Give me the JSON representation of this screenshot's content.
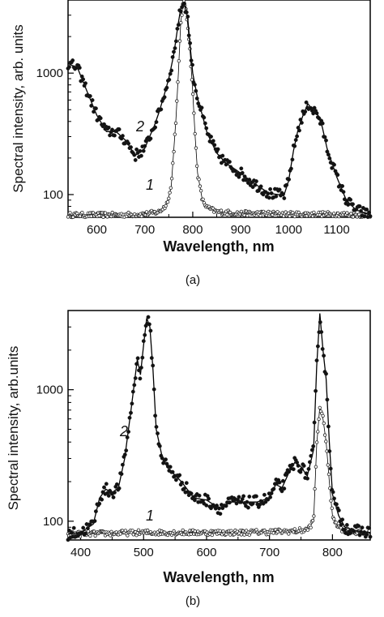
{
  "chart_data": [
    {
      "type": "scatter",
      "panel_label": "(a)",
      "xlabel": "Wavelength, nm",
      "ylabel": "Spectral intensity, arb. units",
      "xlim": [
        540,
        1170
      ],
      "ylim": [
        65,
        4000
      ],
      "yscale": "log",
      "x_ticks": [
        600,
        700,
        800,
        900,
        1000,
        1100
      ],
      "y_ticks": [
        100,
        1000
      ],
      "grid": false,
      "legend": "none",
      "series": [
        {
          "name": "1",
          "marker": "open-circle",
          "x": [
            540,
            600,
            650,
            700,
            730,
            745,
            755,
            765,
            770,
            775,
            780,
            785,
            790,
            795,
            800,
            805,
            810,
            820,
            830,
            850,
            900,
            950,
            1000,
            1050,
            1100,
            1150,
            1170
          ],
          "y": [
            68,
            68,
            68,
            69,
            72,
            82,
            115,
            420,
            1000,
            2600,
            3800,
            3600,
            2400,
            1400,
            700,
            300,
            150,
            90,
            78,
            72,
            70,
            70,
            69,
            69,
            69,
            68,
            68
          ]
        },
        {
          "name": "2",
          "marker": "filled-circle",
          "x": [
            540,
            560,
            580,
            600,
            620,
            640,
            660,
            680,
            700,
            710,
            720,
            730,
            740,
            750,
            760,
            770,
            775,
            780,
            785,
            790,
            795,
            800,
            810,
            820,
            830,
            850,
            870,
            890,
            900,
            920,
            940,
            960,
            980,
            990,
            1000,
            1010,
            1020,
            1030,
            1040,
            1050,
            1060,
            1070,
            1080,
            1100,
            1120,
            1140,
            1160,
            1170
          ],
          "y": [
            1200,
            1100,
            700,
            450,
            330,
            330,
            280,
            210,
            240,
            300,
            370,
            480,
            650,
            900,
            1400,
            2600,
            3400,
            3800,
            3500,
            2700,
            1600,
            1000,
            620,
            450,
            320,
            220,
            180,
            160,
            150,
            130,
            115,
            102,
            100,
            98,
            130,
            230,
            350,
            450,
            560,
            500,
            460,
            360,
            240,
            140,
            90,
            75,
            70,
            68
          ]
        }
      ],
      "annotations": [
        "1",
        "2"
      ]
    },
    {
      "type": "scatter",
      "panel_label": "(b)",
      "xlabel": "Wavelength, nm",
      "ylabel": "Spectral intensity, arb.units",
      "xlim": [
        380,
        860
      ],
      "ylim": [
        72,
        4000
      ],
      "yscale": "log",
      "x_ticks": [
        400,
        500,
        600,
        700,
        800
      ],
      "y_ticks": [
        100,
        1000
      ],
      "grid": false,
      "legend": "none",
      "series": [
        {
          "name": "1",
          "marker": "open-circle",
          "x": [
            380,
            400,
            450,
            500,
            550,
            600,
            650,
            700,
            740,
            760,
            770,
            775,
            780,
            785,
            790,
            795,
            800,
            810,
            820,
            840,
            860
          ],
          "y": [
            80,
            80,
            81,
            82,
            82,
            82,
            82,
            83,
            84,
            86,
            100,
            380,
            750,
            600,
            400,
            200,
            110,
            90,
            85,
            82,
            81
          ],
          "points_count": 21
        },
        {
          "name": "2",
          "marker": "filled-circle",
          "x": [
            380,
            400,
            420,
            430,
            440,
            450,
            460,
            470,
            480,
            490,
            495,
            500,
            505,
            510,
            515,
            520,
            530,
            540,
            560,
            580,
            600,
            620,
            640,
            660,
            680,
            700,
            710,
            720,
            730,
            740,
            750,
            760,
            770,
            775,
            780,
            785,
            790,
            795,
            800,
            810,
            820,
            840,
            860
          ],
          "y": [
            80,
            82,
            95,
            150,
            175,
            165,
            180,
            300,
            700,
            1700,
            1300,
            2200,
            3500,
            3000,
            1400,
            500,
            300,
            250,
            200,
            150,
            145,
            125,
            140,
            140,
            140,
            150,
            190,
            180,
            230,
            280,
            260,
            220,
            350,
            1500,
            3800,
            2000,
            1200,
            400,
            160,
            110,
            90,
            84,
            82
          ]
        }
      ],
      "annotations": [
        "1",
        "2"
      ]
    }
  ],
  "panels": [
    {
      "ylabel": "Spectral intensity, arb. units",
      "xlabel": "Wavelength, nm",
      "panel_label": "(a)",
      "curve_label_1": "1",
      "curve_label_2": "2"
    },
    {
      "ylabel": "Spectral intensity, arb.units",
      "xlabel": "Wavelength, nm",
      "panel_label": "(b)",
      "curve_label_1": "1",
      "curve_label_2": "2"
    }
  ]
}
